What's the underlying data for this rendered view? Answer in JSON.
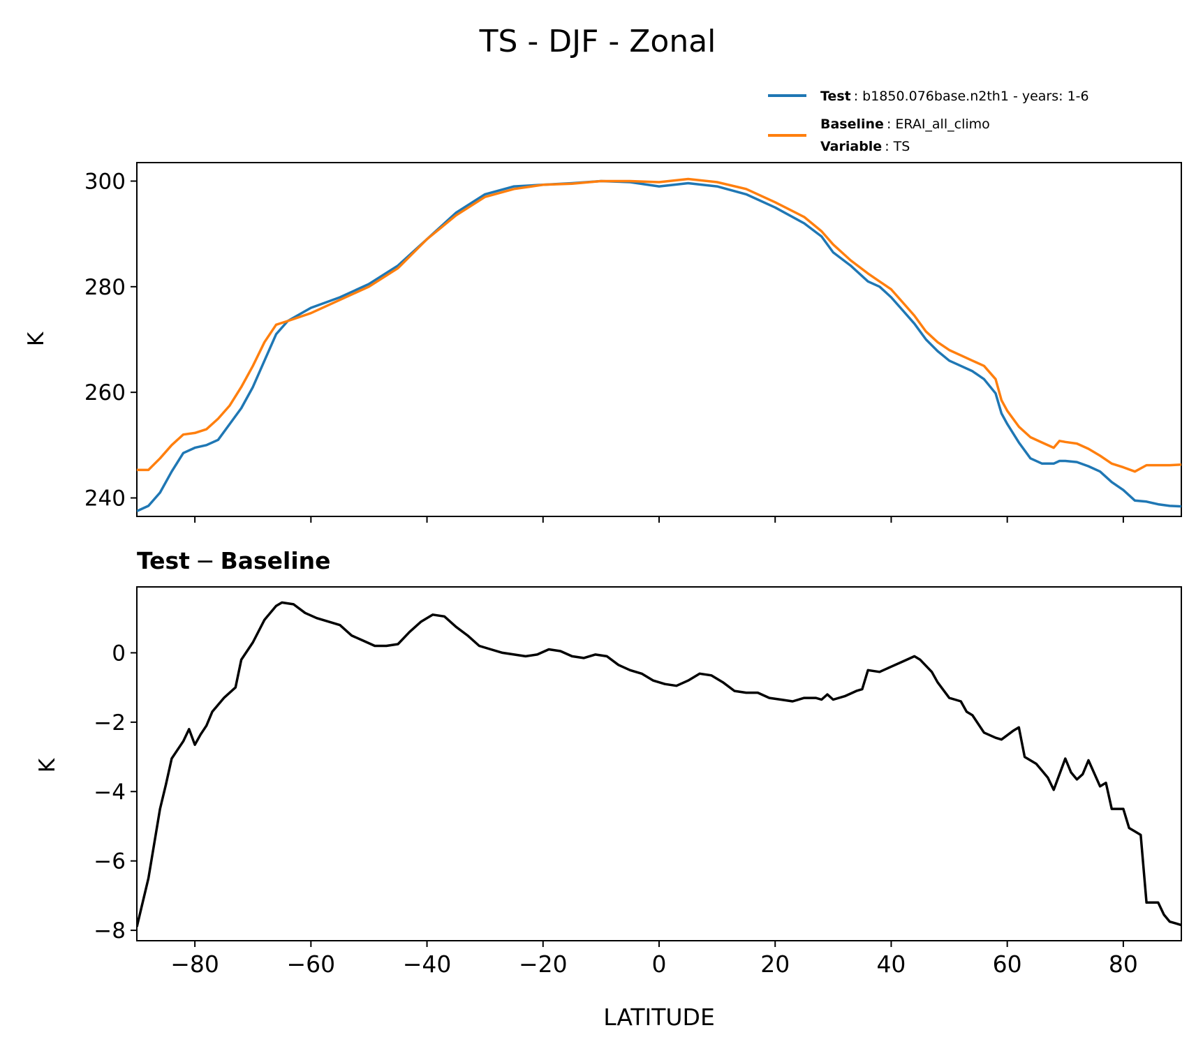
{
  "figure": {
    "title": "TS - DJF - Zonal",
    "subplot_title_left": "Test",
    "subplot_title_op": "−",
    "subplot_title_right": "Baseline",
    "legend": {
      "test_key": "Test",
      "test_value": ": b1850.076base.n2th1 - years: 1-6",
      "baseline_key": "Baseline",
      "baseline_value": ": ERAI_all_climo",
      "variable_key": "Variable",
      "variable_value": ": TS"
    }
  },
  "colors": {
    "test": "#1f77b4",
    "baseline": "#ff7f0e",
    "diff": "#000000"
  },
  "chart_data": [
    {
      "type": "line",
      "ylabel": "K",
      "xlabel": "",
      "xlim": [
        -90,
        90
      ],
      "ylim": [
        236.5,
        303.5
      ],
      "yticks": [
        240,
        260,
        280,
        300
      ],
      "xticks": [
        -80,
        -60,
        -40,
        -20,
        0,
        20,
        40,
        60,
        80
      ],
      "legend": "top-right, above axes",
      "x": [
        -90,
        -88,
        -86,
        -84,
        -82,
        -80,
        -78,
        -76,
        -74,
        -72,
        -70,
        -68,
        -66,
        -64,
        -60,
        -55,
        -50,
        -45,
        -40,
        -35,
        -30,
        -25,
        -20,
        -15,
        -10,
        -5,
        0,
        5,
        10,
        15,
        20,
        25,
        28,
        30,
        33,
        36,
        38,
        40,
        42,
        44,
        46,
        48,
        50,
        52,
        54,
        56,
        58,
        59,
        60,
        62,
        64,
        66,
        68,
        69,
        70,
        72,
        74,
        76,
        78,
        80,
        82,
        84,
        86,
        88,
        90
      ],
      "series": [
        {
          "name": "Test",
          "values": [
            237.5,
            238.5,
            241,
            245,
            248.5,
            249.5,
            250,
            251,
            254,
            257,
            261,
            266,
            271,
            273.5,
            276,
            278,
            280.5,
            284,
            289,
            294,
            297.5,
            299,
            299.3,
            299.6,
            300,
            299.8,
            299,
            299.6,
            299,
            297.5,
            295,
            292,
            289.5,
            286.5,
            284,
            281,
            280,
            278,
            275.5,
            273,
            270,
            267.8,
            266,
            265,
            264,
            262.5,
            259.8,
            256,
            254,
            250.5,
            247.5,
            246.5,
            246.5,
            247,
            247,
            246.8,
            246,
            245,
            243,
            241.5,
            239.5,
            239.3,
            238.8,
            238.5,
            238.4
          ],
          "color": "#1f77b4"
        },
        {
          "name": "Baseline",
          "values": [
            245.3,
            245.3,
            247.5,
            250,
            252,
            252.3,
            253,
            255,
            257.5,
            261,
            265,
            269.5,
            272.8,
            273.5,
            275,
            277.5,
            280,
            283.5,
            289,
            293.5,
            297,
            298.5,
            299.3,
            299.5,
            300,
            300,
            299.8,
            300.4,
            299.8,
            298.5,
            296,
            293.2,
            290.5,
            288,
            285,
            282.5,
            281,
            279.5,
            277,
            274.5,
            271.5,
            269.5,
            268,
            267,
            266,
            265,
            262.5,
            258.5,
            256.5,
            253.5,
            251.5,
            250.5,
            249.5,
            250.8,
            250.6,
            250.3,
            249.3,
            248,
            246.5,
            245.8,
            245,
            246.2,
            246.2,
            246.2,
            246.3
          ],
          "color": "#ff7f0e"
        }
      ]
    },
    {
      "type": "line",
      "title": "Test − Baseline",
      "ylabel": "K",
      "xlabel": "LATITUDE",
      "xlim": [
        -90,
        90
      ],
      "ylim": [
        -8.3,
        1.9
      ],
      "yticks": [
        -8,
        -6,
        -4,
        -2,
        0
      ],
      "xticks": [
        -80,
        -60,
        -40,
        -20,
        0,
        20,
        40,
        60,
        80
      ],
      "x": [
        -90,
        -88,
        -86,
        -85,
        -84,
        -82,
        -81,
        -80,
        -79,
        -78,
        -77,
        -75,
        -73,
        -72,
        -70,
        -68,
        -66,
        -65,
        -63,
        -61,
        -59,
        -57,
        -55,
        -53,
        -51,
        -49,
        -47,
        -45,
        -43,
        -41,
        -39,
        -37,
        -35,
        -33,
        -31,
        -29,
        -27,
        -25,
        -23,
        -21,
        -19,
        -17,
        -15,
        -13,
        -11,
        -9,
        -7,
        -5,
        -3,
        -1,
        1,
        3,
        5,
        7,
        9,
        11,
        13,
        15,
        17,
        19,
        21,
        23,
        25,
        27,
        28,
        29,
        30,
        32,
        34,
        35,
        36,
        38,
        40,
        42,
        44,
        45,
        47,
        48,
        50,
        51,
        52,
        53,
        54,
        56,
        58,
        59,
        61,
        62,
        63,
        65,
        66,
        67,
        68,
        69,
        70,
        71,
        72,
        73,
        74,
        76,
        77,
        78,
        80,
        81,
        82,
        83,
        84,
        85,
        86,
        87,
        88,
        89,
        90
      ],
      "series": [
        {
          "name": "Test − Baseline",
          "values": [
            -7.9,
            -6.5,
            -4.5,
            -3.8,
            -3.05,
            -2.55,
            -2.2,
            -2.65,
            -2.35,
            -2.1,
            -1.7,
            -1.3,
            -1.0,
            -0.2,
            0.3,
            0.95,
            1.35,
            1.45,
            1.4,
            1.15,
            1.0,
            0.9,
            0.8,
            0.5,
            0.35,
            0.2,
            0.2,
            0.25,
            0.6,
            0.9,
            1.1,
            1.05,
            0.75,
            0.5,
            0.2,
            0.1,
            0.0,
            -0.05,
            -0.1,
            -0.05,
            0.1,
            0.05,
            -0.1,
            -0.15,
            -0.05,
            -0.1,
            -0.35,
            -0.5,
            -0.6,
            -0.8,
            -0.9,
            -0.95,
            -0.8,
            -0.6,
            -0.65,
            -0.85,
            -1.1,
            -1.15,
            -1.15,
            -1.3,
            -1.35,
            -1.4,
            -1.3,
            -1.3,
            -1.35,
            -1.2,
            -1.35,
            -1.25,
            -1.1,
            -1.05,
            -0.5,
            -0.55,
            -0.4,
            -0.25,
            -0.1,
            -0.2,
            -0.55,
            -0.85,
            -1.3,
            -1.35,
            -1.4,
            -1.7,
            -1.8,
            -2.3,
            -2.45,
            -2.5,
            -2.25,
            -2.15,
            -3.0,
            -3.2,
            -3.4,
            -3.6,
            -3.95,
            -3.5,
            -3.05,
            -3.45,
            -3.65,
            -3.5,
            -3.1,
            -3.85,
            -3.75,
            -4.5,
            -4.5,
            -5.05,
            -5.15,
            -5.25,
            -7.2,
            -7.2,
            -7.2,
            -7.55,
            -7.75,
            -7.8,
            -7.85
          ],
          "color": "#000000"
        }
      ]
    }
  ]
}
